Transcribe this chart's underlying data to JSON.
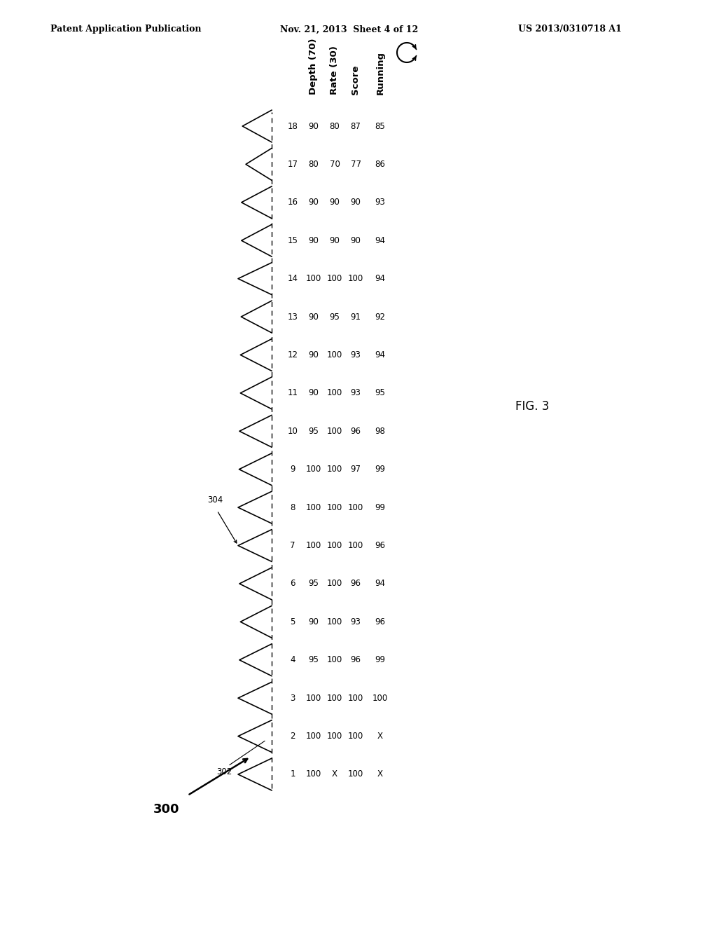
{
  "header_left": "Patent Application Publication",
  "header_center": "Nov. 21, 2013  Sheet 4 of 12",
  "header_right": "US 2013/0310718 A1",
  "fig_label": "FIG. 3",
  "ref_300": "300",
  "ref_302": "302",
  "ref_304": "304",
  "compressions": [
    1,
    2,
    3,
    4,
    5,
    6,
    7,
    8,
    9,
    10,
    11,
    12,
    13,
    14,
    15,
    16,
    17,
    18
  ],
  "depth": [
    100,
    100,
    100,
    95,
    90,
    95,
    100,
    100,
    100,
    95,
    90,
    90,
    90,
    100,
    90,
    90,
    80,
    90
  ],
  "rate": [
    "X",
    100,
    100,
    100,
    100,
    100,
    100,
    100,
    100,
    100,
    100,
    100,
    95,
    100,
    90,
    90,
    70,
    80
  ],
  "score": [
    100,
    100,
    100,
    96,
    93,
    96,
    100,
    100,
    97,
    96,
    93,
    93,
    91,
    100,
    90,
    90,
    77,
    87
  ],
  "running": [
    "X",
    "X",
    100,
    99,
    96,
    94,
    96,
    99,
    99,
    98,
    95,
    94,
    92,
    94,
    94,
    93,
    86,
    85
  ],
  "background_color": "#ffffff",
  "text_color": "#000000"
}
